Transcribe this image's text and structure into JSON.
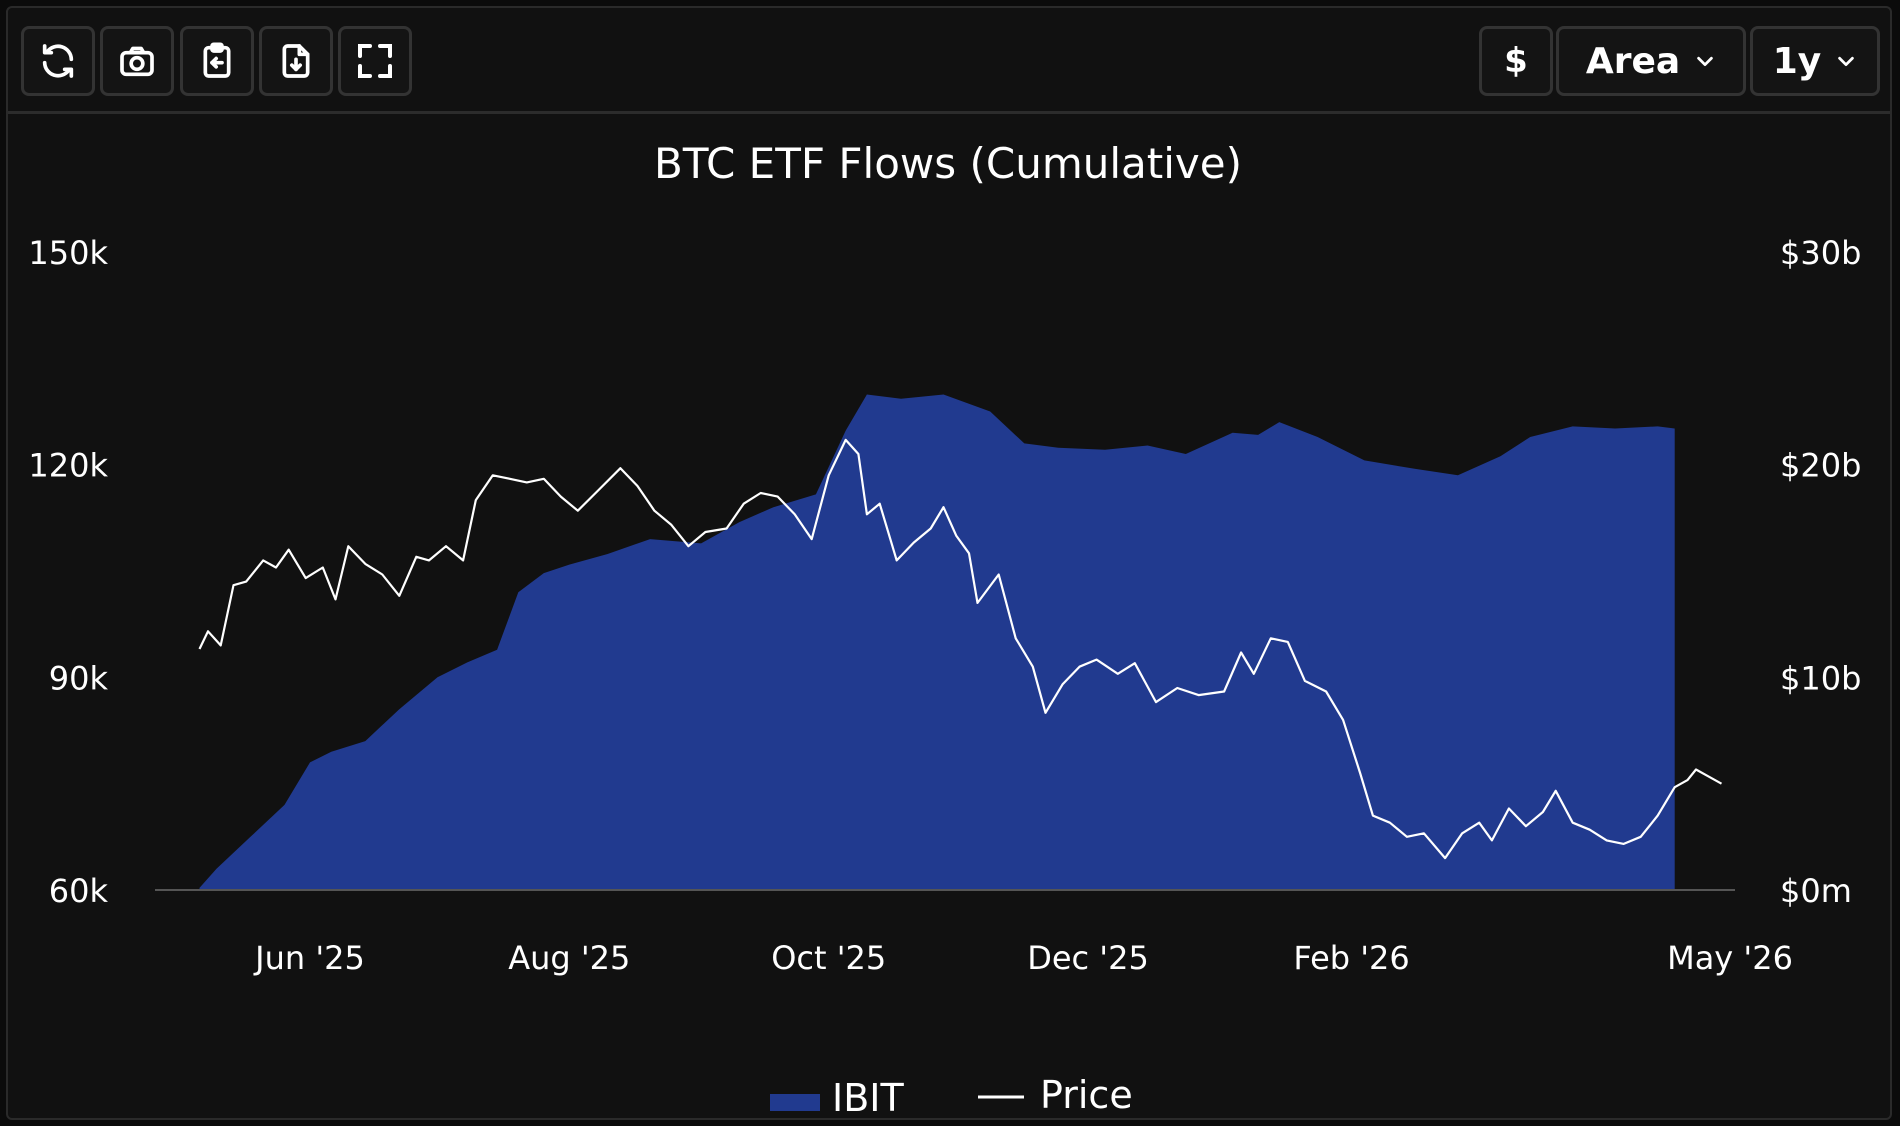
{
  "toolbar": {
    "left_buttons": [
      {
        "icon": "refresh-icon"
      },
      {
        "icon": "camera-icon"
      },
      {
        "icon": "clipboard-icon"
      },
      {
        "icon": "download-icon"
      },
      {
        "icon": "fullscreen-icon"
      }
    ],
    "currency_label": "$",
    "chart_type_label": "Area",
    "range_label": "1y"
  },
  "colors": {
    "background": "#111111",
    "area": "#213a8f",
    "price_line": "#ffffff",
    "text": "#ffffff"
  },
  "chart_data": {
    "type": "area",
    "title": "BTC ETF Flows (Cumulative)",
    "x_ticks": [
      "Jun '25",
      "Aug '25",
      "Oct '25",
      "Dec '25",
      "Feb '26",
      "May '26"
    ],
    "x_tick_dates": [
      "2025-06-01",
      "2025-08-01",
      "2025-10-01",
      "2025-12-01",
      "2026-02-01",
      "2026-05-01"
    ],
    "left_axis": {
      "ticks": [
        "60k",
        "90k",
        "120k",
        "150k"
      ],
      "range": [
        60000,
        150000
      ]
    },
    "right_axis": {
      "ticks": [
        "$0m",
        "$10b",
        "$20b",
        "$30b"
      ],
      "range": [
        0,
        30
      ]
    },
    "legend": {
      "position": "bottom-center",
      "items": [
        "IBIT",
        "Price"
      ]
    },
    "series": [
      {
        "name": "IBIT",
        "kind": "area",
        "axis": "right",
        "unit": "USD billions",
        "points": [
          [
            "2025-05-06",
            0.1
          ],
          [
            "2025-05-10",
            1.0
          ],
          [
            "2025-05-18",
            2.5
          ],
          [
            "2025-05-26",
            4.0
          ],
          [
            "2025-06-01",
            6.0
          ],
          [
            "2025-06-06",
            6.5
          ],
          [
            "2025-06-14",
            7.0
          ],
          [
            "2025-06-22",
            8.5
          ],
          [
            "2025-07-01",
            10.0
          ],
          [
            "2025-07-08",
            10.7
          ],
          [
            "2025-07-15",
            11.3
          ],
          [
            "2025-07-20",
            14.0
          ],
          [
            "2025-07-26",
            14.9
          ],
          [
            "2025-08-01",
            15.3
          ],
          [
            "2025-08-10",
            15.8
          ],
          [
            "2025-08-20",
            16.5
          ],
          [
            "2025-09-01",
            16.3
          ],
          [
            "2025-09-10",
            17.3
          ],
          [
            "2025-09-18",
            18.0
          ],
          [
            "2025-09-28",
            18.6
          ],
          [
            "2025-10-05",
            21.6
          ],
          [
            "2025-10-10",
            23.3
          ],
          [
            "2025-10-18",
            23.1
          ],
          [
            "2025-10-28",
            23.3
          ],
          [
            "2025-11-08",
            22.5
          ],
          [
            "2025-11-16",
            21.0
          ],
          [
            "2025-11-24",
            20.8
          ],
          [
            "2025-12-05",
            20.7
          ],
          [
            "2025-12-15",
            20.9
          ],
          [
            "2025-12-24",
            20.5
          ],
          [
            "2026-01-04",
            21.5
          ],
          [
            "2026-01-10",
            21.4
          ],
          [
            "2026-01-15",
            22.0
          ],
          [
            "2026-01-24",
            21.3
          ],
          [
            "2026-02-04",
            20.2
          ],
          [
            "2026-02-16",
            19.8
          ],
          [
            "2026-02-26",
            19.5
          ],
          [
            "2026-03-08",
            20.4
          ],
          [
            "2026-03-15",
            21.3
          ],
          [
            "2026-03-25",
            21.8
          ],
          [
            "2026-04-04",
            21.7
          ],
          [
            "2026-04-14",
            21.8
          ],
          [
            "2026-04-18",
            21.7
          ]
        ]
      },
      {
        "name": "Price",
        "kind": "line",
        "axis": "left",
        "unit": "USD",
        "points": [
          [
            "2025-05-06",
            94000
          ],
          [
            "2025-05-08",
            96500
          ],
          [
            "2025-05-11",
            94500
          ],
          [
            "2025-05-14",
            103000
          ],
          [
            "2025-05-17",
            103500
          ],
          [
            "2025-05-21",
            106500
          ],
          [
            "2025-05-24",
            105500
          ],
          [
            "2025-05-27",
            108000
          ],
          [
            "2025-05-31",
            104000
          ],
          [
            "2025-06-04",
            105500
          ],
          [
            "2025-06-07",
            101000
          ],
          [
            "2025-06-10",
            108500
          ],
          [
            "2025-06-14",
            106000
          ],
          [
            "2025-06-18",
            104500
          ],
          [
            "2025-06-22",
            101500
          ],
          [
            "2025-06-26",
            107000
          ],
          [
            "2025-06-29",
            106500
          ],
          [
            "2025-07-03",
            108500
          ],
          [
            "2025-07-07",
            106500
          ],
          [
            "2025-07-10",
            115000
          ],
          [
            "2025-07-14",
            118500
          ],
          [
            "2025-07-18",
            118000
          ],
          [
            "2025-07-22",
            117500
          ],
          [
            "2025-07-26",
            118000
          ],
          [
            "2025-07-30",
            115500
          ],
          [
            "2025-08-03",
            113500
          ],
          [
            "2025-08-08",
            116500
          ],
          [
            "2025-08-13",
            119500
          ],
          [
            "2025-08-17",
            117000
          ],
          [
            "2025-08-21",
            113500
          ],
          [
            "2025-08-25",
            111500
          ],
          [
            "2025-08-29",
            108500
          ],
          [
            "2025-09-02",
            110500
          ],
          [
            "2025-09-07",
            111000
          ],
          [
            "2025-09-11",
            114500
          ],
          [
            "2025-09-15",
            116000
          ],
          [
            "2025-09-19",
            115500
          ],
          [
            "2025-09-23",
            113000
          ],
          [
            "2025-09-27",
            109500
          ],
          [
            "2025-10-01",
            118500
          ],
          [
            "2025-10-05",
            123500
          ],
          [
            "2025-10-08",
            121500
          ],
          [
            "2025-10-10",
            113000
          ],
          [
            "2025-10-13",
            114500
          ],
          [
            "2025-10-17",
            106500
          ],
          [
            "2025-10-21",
            109000
          ],
          [
            "2025-10-25",
            111000
          ],
          [
            "2025-10-28",
            114000
          ],
          [
            "2025-10-31",
            110000
          ],
          [
            "2025-11-03",
            107500
          ],
          [
            "2025-11-05",
            100500
          ],
          [
            "2025-11-10",
            104500
          ],
          [
            "2025-11-14",
            95500
          ],
          [
            "2025-11-18",
            91500
          ],
          [
            "2025-11-21",
            85000
          ],
          [
            "2025-11-25",
            89000
          ],
          [
            "2025-11-29",
            91500
          ],
          [
            "2025-12-03",
            92500
          ],
          [
            "2025-12-08",
            90500
          ],
          [
            "2025-12-12",
            92000
          ],
          [
            "2025-12-17",
            86500
          ],
          [
            "2025-12-22",
            88500
          ],
          [
            "2025-12-27",
            87500
          ],
          [
            "2026-01-02",
            88000
          ],
          [
            "2026-01-06",
            93500
          ],
          [
            "2026-01-09",
            90500
          ],
          [
            "2026-01-13",
            95500
          ],
          [
            "2026-01-17",
            95000
          ],
          [
            "2026-01-21",
            89500
          ],
          [
            "2026-01-26",
            88000
          ],
          [
            "2026-01-30",
            84000
          ],
          [
            "2026-02-03",
            76500
          ],
          [
            "2026-02-06",
            70500
          ],
          [
            "2026-02-10",
            69500
          ],
          [
            "2026-02-14",
            67500
          ],
          [
            "2026-02-18",
            68000
          ],
          [
            "2026-02-23",
            64500
          ],
          [
            "2026-02-27",
            68000
          ],
          [
            "2026-03-03",
            69500
          ],
          [
            "2026-03-06",
            67000
          ],
          [
            "2026-03-10",
            71500
          ],
          [
            "2026-03-14",
            69000
          ],
          [
            "2026-03-18",
            71000
          ],
          [
            "2026-03-21",
            74000
          ],
          [
            "2026-03-25",
            69500
          ],
          [
            "2026-03-29",
            68500
          ],
          [
            "2026-04-02",
            67000
          ],
          [
            "2026-04-06",
            66500
          ],
          [
            "2026-04-10",
            67500
          ],
          [
            "2026-04-14",
            70500
          ],
          [
            "2026-04-18",
            74500
          ],
          [
            "2026-04-21",
            75500
          ],
          [
            "2026-04-23",
            77000
          ],
          [
            "2026-04-26",
            76000
          ],
          [
            "2026-04-29",
            75000
          ]
        ]
      }
    ]
  }
}
